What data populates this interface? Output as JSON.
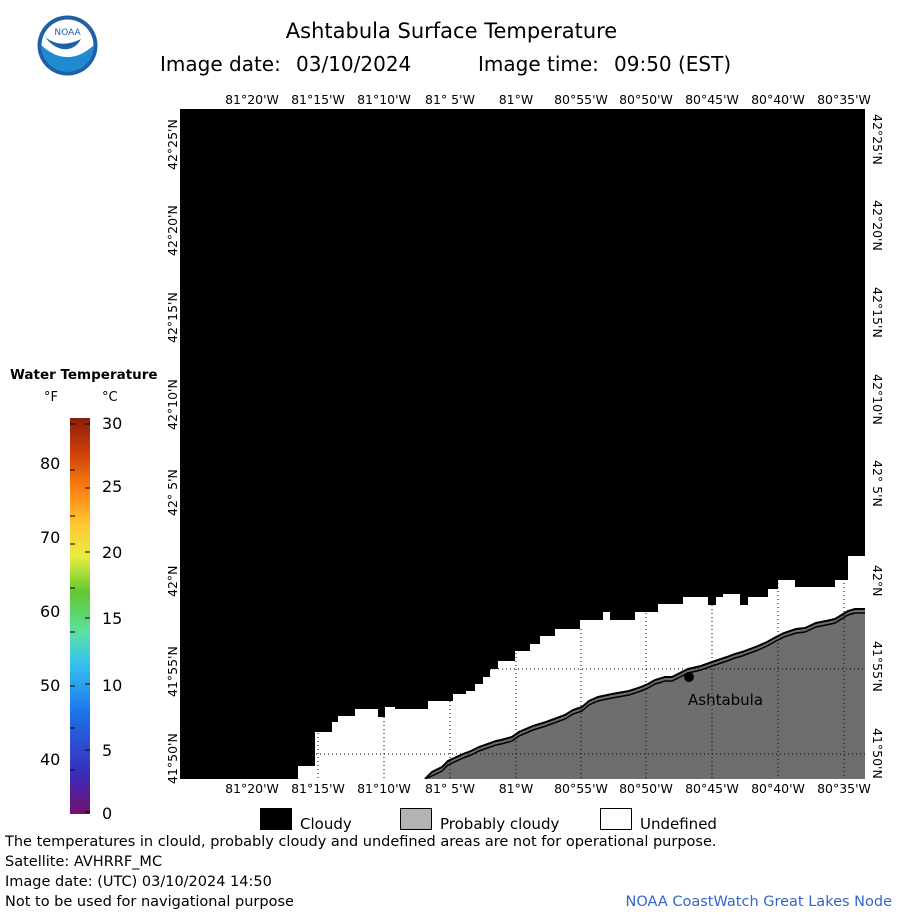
{
  "header": {
    "title": "Ashtabula Surface Temperature",
    "image_date_label": "Image date:",
    "image_date": "03/10/2024",
    "image_time_label": "Image time:",
    "image_time": "09:50 (EST)"
  },
  "logo": {
    "text": "NOAA",
    "icon": "noaa-logo"
  },
  "map": {
    "longitude_labels": [
      "81°20'W",
      "81°15'W",
      "81°10'W",
      "81° 5'W",
      "81°W",
      "80°55'W",
      "80°50'W",
      "80°45'W",
      "80°40'W",
      "80°35'W"
    ],
    "latitude_labels": [
      "42°25'N",
      "42°20'N",
      "42°15'N",
      "42°10'N",
      "42° 5'N",
      "42°N",
      "41°55'N",
      "41°50'N"
    ],
    "city_label": "Ashtabula",
    "colors": {
      "cloudy": "#000000",
      "land": "#6e6e6e",
      "undefined": "#ffffff",
      "shoreline": "#000000"
    }
  },
  "legend": {
    "title": "Water Temperature",
    "unit_f": "°F",
    "unit_c": "°C",
    "f_ticks": [
      "80",
      "70",
      "60",
      "50",
      "40"
    ],
    "c_ticks": [
      "30",
      "25",
      "20",
      "15",
      "10",
      "5",
      "0"
    ],
    "gradient_colors": [
      "#74116f",
      "#3a2cb8",
      "#1e6fe8",
      "#35c3f0",
      "#5de0a0",
      "#60c830",
      "#e8ec40",
      "#ffc830",
      "#f87a10",
      "#c83a0a",
      "#8a1e0a"
    ]
  },
  "key": {
    "cloudy": {
      "label": "Cloudy",
      "color": "#000000"
    },
    "probably_cloudy": {
      "label": "Probably cloudy",
      "color": "#b4b4b4"
    },
    "undefined": {
      "label": "Undefined",
      "color": "#ffffff"
    }
  },
  "footer": {
    "disclaimer": "The temperatures in clould, probably cloudy and undefined areas are not for operational purpose.",
    "satellite": "Satellite: AVHRRF_MC",
    "utc_date": "Image date: (UTC) 03/10/2024  14:50",
    "nav_warning": "Not to be used for navigational purpose",
    "credit": "NOAA CoastWatch Great Lakes Node"
  }
}
